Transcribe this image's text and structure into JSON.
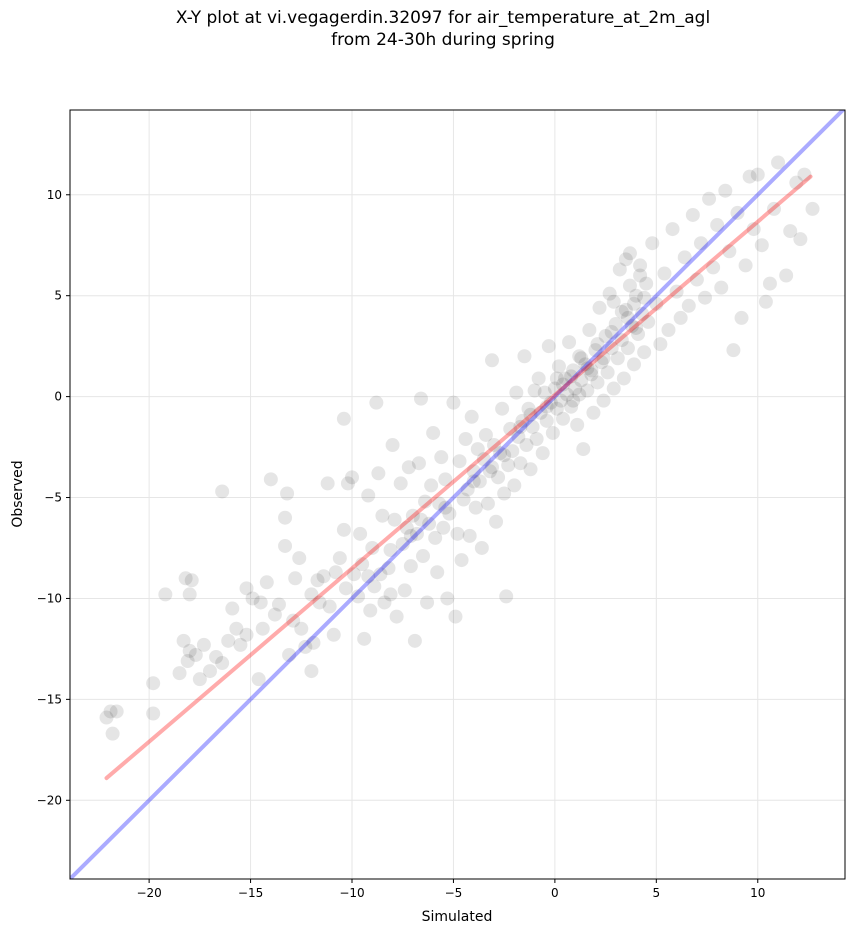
{
  "chart_data": {
    "type": "scatter",
    "title": "X-Y plot at vi.vegagerdin.32097 for air_temperature_at_2m_agl",
    "subtitle": "from 24-30h during spring",
    "xlabel": "Simulated",
    "ylabel": "Observed",
    "xlim": [
      -23.9,
      14.3
    ],
    "ylim": [
      -23.9,
      14.2
    ],
    "xticks": [
      -20,
      -15,
      -10,
      -5,
      0,
      5,
      10
    ],
    "yticks": [
      -20,
      -15,
      -10,
      -5,
      0,
      5,
      10
    ],
    "xtick_labels": [
      "−20",
      "−15",
      "−10",
      "−5",
      "0",
      "5",
      "10"
    ],
    "ytick_labels": [
      "−20",
      "−15",
      "−10",
      "−5",
      "0",
      "5",
      "10"
    ],
    "grid": true,
    "colors": {
      "points": "#000000",
      "identity_line": "#0000ff",
      "fit_line": "#ff0000"
    },
    "series": [
      {
        "type": "scatter",
        "points": [
          [
            -22.1,
            -15.9
          ],
          [
            -21.6,
            -15.6
          ],
          [
            -21.8,
            -16.7
          ],
          [
            -21.9,
            -15.6
          ],
          [
            -19.8,
            -14.2
          ],
          [
            -19.8,
            -15.7
          ],
          [
            -19.2,
            -9.8
          ],
          [
            -18.5,
            -13.7
          ],
          [
            -18.2,
            -9.0
          ],
          [
            -18.0,
            -9.8
          ],
          [
            -17.9,
            -9.1
          ],
          [
            -18.3,
            -12.1
          ],
          [
            -18.0,
            -12.6
          ],
          [
            -17.7,
            -12.8
          ],
          [
            -18.1,
            -13.1
          ],
          [
            -17.5,
            -14.0
          ],
          [
            -17.3,
            -12.3
          ],
          [
            -17.0,
            -13.6
          ],
          [
            -16.7,
            -12.9
          ],
          [
            -16.4,
            -4.7
          ],
          [
            -16.4,
            -13.2
          ],
          [
            -16.1,
            -12.1
          ],
          [
            -15.9,
            -10.5
          ],
          [
            -15.7,
            -11.5
          ],
          [
            -15.5,
            -12.3
          ],
          [
            -15.2,
            -11.8
          ],
          [
            -15.2,
            -9.5
          ],
          [
            -14.9,
            -10.0
          ],
          [
            -14.6,
            -14.0
          ],
          [
            -14.5,
            -10.2
          ],
          [
            -14.4,
            -11.5
          ],
          [
            -14.2,
            -9.2
          ],
          [
            -14.0,
            -4.1
          ],
          [
            -13.8,
            -10.8
          ],
          [
            -13.6,
            -10.3
          ],
          [
            -13.3,
            -7.4
          ],
          [
            -13.3,
            -6.0
          ],
          [
            -13.2,
            -4.8
          ],
          [
            -13.1,
            -12.8
          ],
          [
            -12.9,
            -11.1
          ],
          [
            -12.8,
            -9.0
          ],
          [
            -12.6,
            -8.0
          ],
          [
            -12.5,
            -11.5
          ],
          [
            -12.3,
            -12.4
          ],
          [
            -12.0,
            -9.8
          ],
          [
            -12.0,
            -13.6
          ],
          [
            -11.9,
            -12.2
          ],
          [
            -11.7,
            -9.1
          ],
          [
            -11.6,
            -10.2
          ],
          [
            -11.4,
            -8.9
          ],
          [
            -11.2,
            -4.3
          ],
          [
            -11.1,
            -10.4
          ],
          [
            -10.9,
            -11.8
          ],
          [
            -10.8,
            -8.7
          ],
          [
            -10.6,
            -8.0
          ],
          [
            -10.4,
            -1.1
          ],
          [
            -10.4,
            -6.6
          ],
          [
            -10.2,
            -4.3
          ],
          [
            -10.0,
            -4.0
          ],
          [
            -9.9,
            -8.8
          ],
          [
            -9.7,
            -9.9
          ],
          [
            -9.6,
            -6.8
          ],
          [
            -9.5,
            -8.3
          ],
          [
            -9.4,
            -12.0
          ],
          [
            -9.2,
            -4.9
          ],
          [
            -9.1,
            -10.6
          ],
          [
            -9.0,
            -7.5
          ],
          [
            -8.9,
            -9.4
          ],
          [
            -8.8,
            -0.3
          ],
          [
            -8.7,
            -3.8
          ],
          [
            -8.6,
            -8.8
          ],
          [
            -8.5,
            -5.9
          ],
          [
            -8.4,
            -10.2
          ],
          [
            -8.2,
            -8.5
          ],
          [
            -8.1,
            -9.8
          ],
          [
            -8.0,
            -2.4
          ],
          [
            -7.9,
            -6.1
          ],
          [
            -7.8,
            -10.9
          ],
          [
            -7.6,
            -4.3
          ],
          [
            -7.5,
            -7.3
          ],
          [
            -7.4,
            -9.6
          ],
          [
            -7.3,
            -6.5
          ],
          [
            -7.2,
            -3.5
          ],
          [
            -7.1,
            -8.4
          ],
          [
            -7.0,
            -5.9
          ],
          [
            -6.9,
            -12.1
          ],
          [
            -6.8,
            -6.8
          ],
          [
            -6.7,
            -3.3
          ],
          [
            -6.6,
            -0.1
          ],
          [
            -6.5,
            -7.9
          ],
          [
            -6.4,
            -5.2
          ],
          [
            -6.3,
            -10.2
          ],
          [
            -6.2,
            -6.3
          ],
          [
            -6.1,
            -4.4
          ],
          [
            -6.0,
            -1.8
          ],
          [
            -5.9,
            -7.0
          ],
          [
            -5.8,
            -8.7
          ],
          [
            -5.7,
            -5.3
          ],
          [
            -5.6,
            -3.0
          ],
          [
            -5.5,
            -6.5
          ],
          [
            -5.4,
            -4.1
          ],
          [
            -5.3,
            -10.0
          ],
          [
            -5.2,
            -5.8
          ],
          [
            -5.0,
            -0.3
          ],
          [
            -4.9,
            -10.9
          ],
          [
            -4.8,
            -6.8
          ],
          [
            -4.7,
            -3.2
          ],
          [
            -4.6,
            -8.1
          ],
          [
            -4.5,
            -5.1
          ],
          [
            -4.4,
            -2.1
          ],
          [
            -4.3,
            -4.6
          ],
          [
            -4.2,
            -6.9
          ],
          [
            -4.1,
            -1.0
          ],
          [
            -4.0,
            -3.7
          ],
          [
            -3.9,
            -5.5
          ],
          [
            -3.8,
            -2.6
          ],
          [
            -3.7,
            -4.2
          ],
          [
            -3.6,
            -7.5
          ],
          [
            -3.5,
            -3.1
          ],
          [
            -3.4,
            -1.9
          ],
          [
            -3.3,
            -5.3
          ],
          [
            -3.2,
            -3.7
          ],
          [
            -3.1,
            1.8
          ],
          [
            -3.0,
            -2.4
          ],
          [
            -2.9,
            -6.2
          ],
          [
            -2.8,
            -4.0
          ],
          [
            -2.7,
            -2.8
          ],
          [
            -2.6,
            -0.6
          ],
          [
            -2.5,
            -4.8
          ],
          [
            -2.4,
            -9.9
          ],
          [
            -2.3,
            -3.4
          ],
          [
            -2.2,
            -1.6
          ],
          [
            -2.1,
            -2.7
          ],
          [
            -2.0,
            -4.4
          ],
          [
            -1.9,
            0.2
          ],
          [
            -1.8,
            -2.0
          ],
          [
            -1.7,
            -3.3
          ],
          [
            -1.6,
            -1.2
          ],
          [
            -1.5,
            2.0
          ],
          [
            -1.4,
            -2.4
          ],
          [
            -1.3,
            -0.6
          ],
          [
            -1.2,
            -3.6
          ],
          [
            -1.1,
            -1.5
          ],
          [
            -1.0,
            0.3
          ],
          [
            -0.9,
            -2.1
          ],
          [
            -0.8,
            0.9
          ],
          [
            -0.7,
            -0.8
          ],
          [
            -0.6,
            -2.8
          ],
          [
            -0.5,
            0.2
          ],
          [
            -0.4,
            -1.2
          ],
          [
            -0.3,
            2.5
          ],
          [
            -0.2,
            -0.3
          ],
          [
            -0.1,
            -1.8
          ],
          [
            0.0,
            0.4
          ],
          [
            0.1,
            -0.6
          ],
          [
            0.2,
            1.5
          ],
          [
            0.3,
            -0.2
          ],
          [
            0.4,
            -1.1
          ],
          [
            0.5,
            0.9
          ],
          [
            0.6,
            0.1
          ],
          [
            0.7,
            2.7
          ],
          [
            0.8,
            -0.5
          ],
          [
            0.9,
            1.3
          ],
          [
            1.0,
            0.4
          ],
          [
            1.1,
            -1.4
          ],
          [
            1.2,
            2.0
          ],
          [
            1.3,
            0.8
          ],
          [
            1.4,
            -2.6
          ],
          [
            1.5,
            1.6
          ],
          [
            1.6,
            0.3
          ],
          [
            1.7,
            3.3
          ],
          [
            1.8,
            1.1
          ],
          [
            1.9,
            -0.8
          ],
          [
            2.0,
            2.3
          ],
          [
            2.1,
            0.7
          ],
          [
            2.2,
            4.4
          ],
          [
            2.3,
            1.7
          ],
          [
            2.4,
            -0.2
          ],
          [
            2.5,
            3.0
          ],
          [
            2.6,
            1.2
          ],
          [
            2.7,
            5.1
          ],
          [
            2.8,
            2.4
          ],
          [
            2.9,
            0.4
          ],
          [
            3.0,
            3.6
          ],
          [
            3.1,
            1.9
          ],
          [
            3.2,
            6.3
          ],
          [
            3.3,
            2.8
          ],
          [
            3.4,
            0.9
          ],
          [
            3.5,
            4.3
          ],
          [
            3.6,
            2.4
          ],
          [
            3.7,
            7.1
          ],
          [
            3.8,
            3.5
          ],
          [
            3.9,
            1.6
          ],
          [
            4.0,
            5.0
          ],
          [
            4.1,
            3.1
          ],
          [
            4.2,
            6.5
          ],
          [
            4.3,
            4.1
          ],
          [
            4.4,
            2.2
          ],
          [
            4.5,
            5.6
          ],
          [
            4.6,
            3.7
          ],
          [
            4.8,
            7.6
          ],
          [
            5.0,
            4.6
          ],
          [
            5.2,
            2.6
          ],
          [
            5.4,
            6.1
          ],
          [
            5.6,
            3.3
          ],
          [
            5.8,
            8.3
          ],
          [
            6.0,
            5.2
          ],
          [
            6.2,
            3.9
          ],
          [
            6.4,
            6.9
          ],
          [
            6.6,
            4.5
          ],
          [
            6.8,
            9.0
          ],
          [
            7.0,
            5.8
          ],
          [
            7.2,
            7.6
          ],
          [
            7.4,
            4.9
          ],
          [
            7.6,
            9.8
          ],
          [
            7.8,
            6.4
          ],
          [
            8.0,
            8.5
          ],
          [
            8.2,
            5.4
          ],
          [
            8.4,
            10.2
          ],
          [
            8.6,
            7.2
          ],
          [
            8.8,
            2.3
          ],
          [
            9.0,
            9.1
          ],
          [
            9.2,
            3.9
          ],
          [
            9.4,
            6.5
          ],
          [
            9.6,
            10.9
          ],
          [
            9.8,
            8.3
          ],
          [
            10.0,
            11.0
          ],
          [
            10.2,
            7.5
          ],
          [
            10.4,
            4.7
          ],
          [
            10.6,
            5.6
          ],
          [
            10.8,
            9.3
          ],
          [
            11.0,
            11.6
          ],
          [
            11.4,
            6.0
          ],
          [
            11.6,
            8.2
          ],
          [
            11.9,
            10.6
          ],
          [
            12.1,
            7.8
          ],
          [
            12.3,
            11.0
          ],
          [
            12.7,
            9.3
          ],
          [
            1.2,
            0.1
          ],
          [
            0.4,
            0.6
          ],
          [
            0.9,
            -0.2
          ],
          [
            1.6,
            1.4
          ],
          [
            2.4,
            1.9
          ],
          [
            3.6,
            3.9
          ],
          [
            3.9,
            4.6
          ],
          [
            4.0,
            3.4
          ],
          [
            3.3,
            4.2
          ],
          [
            2.8,
            3.2
          ],
          [
            2.1,
            2.6
          ],
          [
            1.8,
            1.3
          ],
          [
            1.3,
            1.9
          ],
          [
            0.8,
            1.0
          ],
          [
            0.1,
            0.9
          ],
          [
            -0.4,
            -0.5
          ],
          [
            -1.2,
            -0.9
          ],
          [
            -1.7,
            -1.5
          ],
          [
            -2.5,
            -2.9
          ],
          [
            -3.1,
            -3.5
          ],
          [
            -4.0,
            -4.2
          ],
          [
            -5.4,
            -5.5
          ],
          [
            -6.6,
            -6.1
          ],
          [
            -7.1,
            -6.9
          ],
          [
            -8.1,
            -7.6
          ],
          [
            -9.2,
            -8.9
          ],
          [
            -10.3,
            -9.5
          ],
          [
            3.7,
            5.5
          ],
          [
            4.2,
            6.0
          ],
          [
            3.5,
            6.8
          ],
          [
            4.4,
            4.9
          ],
          [
            2.9,
            4.7
          ]
        ]
      },
      {
        "type": "line",
        "role": "identity",
        "points": [
          [
            -23.9,
            -23.9
          ],
          [
            14.3,
            14.3
          ]
        ]
      },
      {
        "type": "line",
        "role": "fit",
        "points": [
          [
            -22.1,
            -18.9
          ],
          [
            12.6,
            10.9
          ]
        ]
      }
    ]
  }
}
